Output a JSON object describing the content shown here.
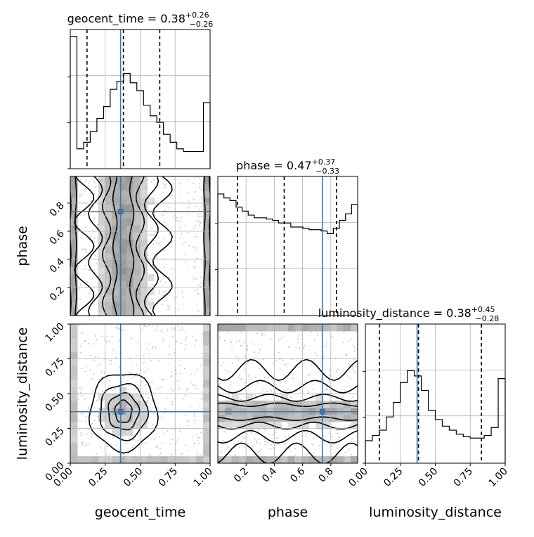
{
  "chart_data": {
    "type": "corner",
    "parameters": [
      "geocent_time",
      "phase",
      "luminosity_distance"
    ],
    "injected_truth": {
      "geocent_time": 0.36,
      "phase": 0.74,
      "luminosity_distance": 0.37
    },
    "truth_color": "#3a76af",
    "axis_labels": {
      "geocent_time": "geocent_time",
      "phase": "phase",
      "luminosity_distance": "luminosity_distance"
    },
    "marginal_titles": [
      {
        "param": "geocent_time",
        "name": "geocent_time",
        "median": "0.38",
        "plus": "+0.26",
        "minus": "−0.26",
        "quantiles": [
          0.12,
          0.38,
          0.64
        ]
      },
      {
        "param": "phase",
        "name": "phase",
        "median": "0.47",
        "plus": "+0.37",
        "minus": "−0.33",
        "quantiles": [
          0.14,
          0.47,
          0.84
        ]
      },
      {
        "param": "luminosity_distance",
        "name": "luminosity_distance",
        "median": "0.38",
        "plus": "+0.45",
        "minus": "−0.28",
        "quantiles": [
          0.1,
          0.38,
          0.83
        ]
      }
    ],
    "ranges": {
      "geocent_time": [
        0,
        1
      ],
      "phase": [
        0,
        0.99
      ],
      "luminosity_distance": [
        0,
        1
      ]
    },
    "ticks": {
      "geocent_time": [
        "0.00",
        "0.25",
        "0.50",
        "0.75",
        "1.00"
      ],
      "phase": [
        "0.2",
        "0.4",
        "0.6",
        "0.8"
      ],
      "luminosity_distance": [
        "0.00",
        "0.25",
        "0.50",
        "0.75",
        "1.00"
      ]
    },
    "histograms": {
      "geocent_time": [
        1.0,
        0.15,
        0.2,
        0.28,
        0.38,
        0.47,
        0.6,
        0.66,
        0.72,
        0.65,
        0.59,
        0.48,
        0.4,
        0.35,
        0.26,
        0.2,
        0.15,
        0.13,
        0.13,
        0.13,
        0.5
      ],
      "phase": [
        0.92,
        0.89,
        0.87,
        0.82,
        0.79,
        0.76,
        0.74,
        0.74,
        0.73,
        0.72,
        0.7,
        0.7,
        0.67,
        0.67,
        0.66,
        0.65,
        0.65,
        0.64,
        0.62,
        0.66,
        0.72,
        0.77,
        0.84
      ],
      "luminosity_distance": [
        0.17,
        0.21,
        0.25,
        0.35,
        0.46,
        0.61,
        0.7,
        0.66,
        0.55,
        0.4,
        0.33,
        0.28,
        0.25,
        0.22,
        0.2,
        0.19,
        0.19,
        0.21,
        0.27,
        0.64
      ]
    },
    "grid": true
  }
}
